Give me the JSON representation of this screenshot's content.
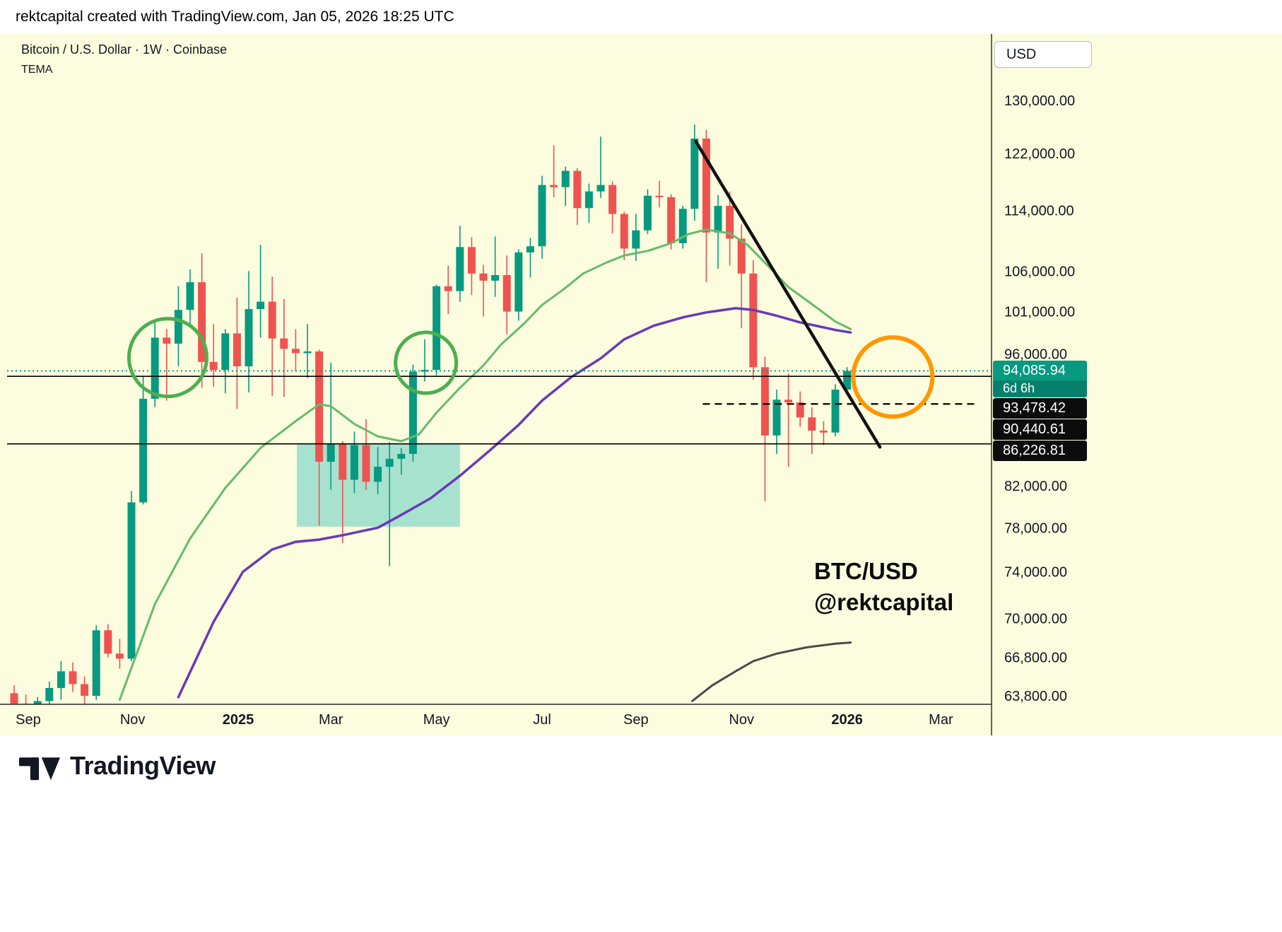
{
  "topbar": {
    "attribution": "rektcapital created with TradingView.com, Jan 05, 2026 18:25 UTC"
  },
  "chart_header": {
    "symbol_line": "Bitcoin / U.S. Dollar · 1W · Coinbase",
    "indicator": "TEMA"
  },
  "watermark": {
    "line1": "BTC/USD",
    "line2": "@rektcapital"
  },
  "price_axis": {
    "currency_label": "USD",
    "ticks": [
      {
        "label": "130,000.00",
        "price": 130000
      },
      {
        "label": "122,000.00",
        "price": 122000
      },
      {
        "label": "114,000.00",
        "price": 114000
      },
      {
        "label": "106,000.00",
        "price": 106000
      },
      {
        "label": "101,000.00",
        "price": 101000
      },
      {
        "label": "96,000.00",
        "price": 96000
      },
      {
        "label": "82,000.00",
        "price": 82000
      },
      {
        "label": "78,000.00",
        "price": 78000
      },
      {
        "label": "74,000.00",
        "price": 74000
      },
      {
        "label": "70,000.00",
        "price": 70000
      },
      {
        "label": "66,800.00",
        "price": 66800
      },
      {
        "label": "63,800.00",
        "price": 63800
      }
    ]
  },
  "time_axis": {
    "ticks": [
      {
        "label": "Sep",
        "i": 1.2,
        "bold": false
      },
      {
        "label": "Nov",
        "i": 10.1,
        "bold": false
      },
      {
        "label": "2025",
        "i": 19.1,
        "bold": true
      },
      {
        "label": "Mar",
        "i": 27,
        "bold": false
      },
      {
        "label": "May",
        "i": 36,
        "bold": false
      },
      {
        "label": "Jul",
        "i": 45,
        "bold": false
      },
      {
        "label": "Sep",
        "i": 53,
        "bold": false
      },
      {
        "label": "Nov",
        "i": 62,
        "bold": false
      },
      {
        "label": "2026",
        "i": 71,
        "bold": true
      },
      {
        "label": "Mar",
        "i": 79,
        "bold": false
      }
    ]
  },
  "price_badges": {
    "current": {
      "label": "94,085.94",
      "price": 94085.94,
      "countdown": "6d 6h",
      "bg": "#089981"
    },
    "level_bg": "#0c0c0c",
    "levels": [
      {
        "label": "93,478.42",
        "price": 93478.42
      },
      {
        "label": "90,440.61",
        "price": 90440.61
      },
      {
        "label": "86,226.81",
        "price": 86226.81
      }
    ]
  },
  "footer": {
    "brand": "TradingView"
  },
  "colors": {
    "chart_bg": "#FCFCDF",
    "up": "#089981",
    "down": "#EF5350",
    "ma_green": "#66BB6A",
    "ma_purple": "#673AB7",
    "ma_gray": "#4A4A4A",
    "circle_green": "#4CAF50",
    "circle_orange": "#FF9800",
    "box_teal": "#40C4BC",
    "text": "#131722"
  },
  "chart_data": {
    "type": "candlestick",
    "title": "Bitcoin / U.S. Dollar",
    "timeframe": "1W",
    "exchange": "Coinbase",
    "price_scale": "logarithmic",
    "x_unit": "week",
    "x_start_label": "Sep 2024",
    "x_end_label": "Jan 2026",
    "visible_price_range": [
      63800,
      130000
    ],
    "up_color": "#089981",
    "down_color": "#EF5350",
    "candles": [
      [
        64000,
        64600,
        62600,
        63200
      ],
      [
        63200,
        63900,
        62100,
        62800
      ],
      [
        62800,
        63700,
        61900,
        63400
      ],
      [
        63400,
        64900,
        62900,
        64400
      ],
      [
        64400,
        66500,
        63500,
        65700
      ],
      [
        65700,
        66400,
        64100,
        64700
      ],
      [
        64700,
        65300,
        63000,
        63800
      ],
      [
        63800,
        69400,
        63500,
        69000
      ],
      [
        69000,
        69500,
        66800,
        67100
      ],
      [
        67100,
        68300,
        65900,
        66700
      ],
      [
        66700,
        81500,
        66500,
        80400
      ],
      [
        80400,
        93500,
        80200,
        91000
      ],
      [
        91000,
        99800,
        90100,
        97900
      ],
      [
        97900,
        98900,
        90800,
        97200
      ],
      [
        97200,
        104100,
        94600,
        101200
      ],
      [
        101200,
        106200,
        99400,
        104600
      ],
      [
        104600,
        108300,
        92200,
        95100
      ],
      [
        95100,
        99500,
        92300,
        94200
      ],
      [
        94200,
        98900,
        91600,
        98400
      ],
      [
        98400,
        102700,
        89900,
        94600
      ],
      [
        94600,
        106000,
        91700,
        101300
      ],
      [
        101300,
        109400,
        97900,
        102200
      ],
      [
        102200,
        105300,
        91300,
        97800
      ],
      [
        97800,
        102500,
        91200,
        96600
      ],
      [
        96600,
        98900,
        94000,
        96100
      ],
      [
        96100,
        99500,
        93300,
        96300
      ],
      [
        96300,
        96500,
        78200,
        84400
      ],
      [
        84400,
        95000,
        81600,
        86200
      ],
      [
        86200,
        86500,
        76600,
        82600
      ],
      [
        82600,
        87500,
        81300,
        86100
      ],
      [
        86100,
        88800,
        81600,
        82400
      ],
      [
        82400,
        85900,
        81200,
        83900
      ],
      [
        83900,
        86400,
        74500,
        84700
      ],
      [
        84700,
        85800,
        83100,
        85200
      ],
      [
        85200,
        94800,
        84400,
        94000
      ],
      [
        94000,
        97700,
        92900,
        94200
      ],
      [
        94200,
        104300,
        93600,
        104100
      ],
      [
        104100,
        106700,
        100700,
        103500
      ],
      [
        103500,
        111900,
        102200,
        109100
      ],
      [
        109100,
        110400,
        103000,
        105700
      ],
      [
        105700,
        106800,
        100400,
        104800
      ],
      [
        104800,
        110500,
        102800,
        105500
      ],
      [
        105500,
        108000,
        98300,
        101000
      ],
      [
        101000,
        108800,
        99900,
        108400
      ],
      [
        108400,
        110300,
        105200,
        109200
      ],
      [
        109200,
        118800,
        107600,
        117500
      ],
      [
        117500,
        123200,
        115800,
        117200
      ],
      [
        117200,
        120100,
        114600,
        119500
      ],
      [
        119500,
        119900,
        112000,
        114300
      ],
      [
        114300,
        117700,
        112300,
        116600
      ],
      [
        116600,
        124500,
        115700,
        117500
      ],
      [
        117500,
        118000,
        110900,
        113500
      ],
      [
        113500,
        113800,
        107400,
        108900
      ],
      [
        108900,
        113500,
        107300,
        111300
      ],
      [
        111300,
        116900,
        110800,
        116000
      ],
      [
        116000,
        118100,
        114400,
        115800
      ],
      [
        115800,
        116200,
        108800,
        109600
      ],
      [
        109600,
        114600,
        108900,
        114200
      ],
      [
        114200,
        126300,
        112600,
        124200
      ],
      [
        124200,
        125500,
        104600,
        111000
      ],
      [
        111000,
        116100,
        106300,
        114600
      ],
      [
        114600,
        116600,
        106700,
        110200
      ],
      [
        110200,
        112100,
        99000,
        105700
      ],
      [
        105700,
        107400,
        93100,
        94500
      ],
      [
        94500,
        95700,
        80500,
        87100
      ],
      [
        87100,
        92000,
        85200,
        90900
      ],
      [
        90900,
        93800,
        83900,
        90600
      ],
      [
        90600,
        91800,
        88000,
        89000
      ],
      [
        89000,
        90100,
        85200,
        87600
      ],
      [
        87600,
        88600,
        86100,
        87400
      ],
      [
        87400,
        92600,
        87000,
        92000
      ],
      [
        92000,
        94500,
        91400,
        94086
      ]
    ],
    "overlays": [
      {
        "name": "ma-green",
        "color": "#66BB6A",
        "width": 3,
        "points": [
          [
            9,
            63500
          ],
          [
            12,
            71200
          ],
          [
            15,
            77000
          ],
          [
            18,
            81800
          ],
          [
            21,
            85800
          ],
          [
            24,
            88600
          ],
          [
            26,
            90400
          ],
          [
            27,
            90200
          ],
          [
            29,
            88300
          ],
          [
            31,
            87000
          ],
          [
            33,
            86500
          ],
          [
            34.5,
            87200
          ],
          [
            36,
            89500
          ],
          [
            38,
            92200
          ],
          [
            40,
            94700
          ],
          [
            41.5,
            97100
          ],
          [
            43.5,
            99600
          ],
          [
            45,
            101800
          ],
          [
            47,
            103900
          ],
          [
            48.5,
            105700
          ],
          [
            50.5,
            107100
          ],
          [
            52,
            108000
          ],
          [
            54,
            108600
          ],
          [
            56,
            109600
          ],
          [
            57.5,
            110800
          ],
          [
            59,
            111400
          ],
          [
            61,
            110900
          ],
          [
            62.5,
            109400
          ],
          [
            64.5,
            106300
          ],
          [
            66,
            104000
          ],
          [
            68,
            101900
          ],
          [
            70,
            99800
          ],
          [
            71.3,
            98900
          ]
        ]
      },
      {
        "name": "ma-purple",
        "color": "#673AB7",
        "width": 3.5,
        "points": [
          [
            14,
            63700
          ],
          [
            17,
            69700
          ],
          [
            19.5,
            74000
          ],
          [
            22,
            76000
          ],
          [
            24,
            76700
          ],
          [
            26,
            76900
          ],
          [
            28,
            77300
          ],
          [
            31,
            78000
          ],
          [
            33,
            79200
          ],
          [
            35.5,
            80800
          ],
          [
            38,
            83000
          ],
          [
            40.5,
            85500
          ],
          [
            43,
            88200
          ],
          [
            45,
            90800
          ],
          [
            47.5,
            93400
          ],
          [
            50,
            95500
          ],
          [
            52,
            97700
          ],
          [
            54.5,
            99300
          ],
          [
            57,
            100300
          ],
          [
            59,
            100900
          ],
          [
            61.5,
            101400
          ],
          [
            63,
            101200
          ],
          [
            65,
            100500
          ],
          [
            67,
            99700
          ],
          [
            70,
            98800
          ],
          [
            71.3,
            98500
          ]
        ]
      },
      {
        "name": "ma-gray",
        "color": "#4A4A4A",
        "width": 3,
        "points": [
          [
            57.8,
            63400
          ],
          [
            59.5,
            64600
          ],
          [
            61.5,
            65700
          ],
          [
            63,
            66500
          ],
          [
            65,
            67100
          ],
          [
            67.5,
            67600
          ],
          [
            70,
            67900
          ],
          [
            71.3,
            68000
          ]
        ]
      }
    ],
    "drawings": {
      "trendline": {
        "from": [
          58.1,
          123800
        ],
        "to": [
          73.8,
          85900
        ],
        "color": "#111111",
        "width": 4.5
      },
      "circles": [
        {
          "center": [
            13.1,
            95600
          ],
          "radius_px": 55,
          "color": "#4CAF50",
          "width": 5
        },
        {
          "center": [
            35.1,
            95000
          ],
          "radius_px": 43,
          "color": "#4CAF50",
          "width": 5
        },
        {
          "center": [
            74.9,
            93400
          ],
          "radius_px": 56,
          "color": "#FF9800",
          "width": 6
        }
      ],
      "box": {
        "i_range": [
          24.1,
          38.0
        ],
        "price_range": [
          78100,
          86300
        ],
        "fill": "#40C4BC",
        "opacity": 0.45
      },
      "hlines": [
        {
          "price": 93478.42,
          "style": "solid",
          "color": "#000000",
          "width": 1.6
        },
        {
          "price": 86226.81,
          "style": "solid",
          "color": "#000000",
          "width": 1.6
        },
        {
          "price": 90440.61,
          "style": "dashed",
          "color": "#000000",
          "width": 2.2,
          "i_range": [
            58.7,
            82.2
          ]
        }
      ],
      "price_line": {
        "price": 94085.94,
        "style": "dotted",
        "color": "#089981",
        "width": 2
      }
    }
  }
}
